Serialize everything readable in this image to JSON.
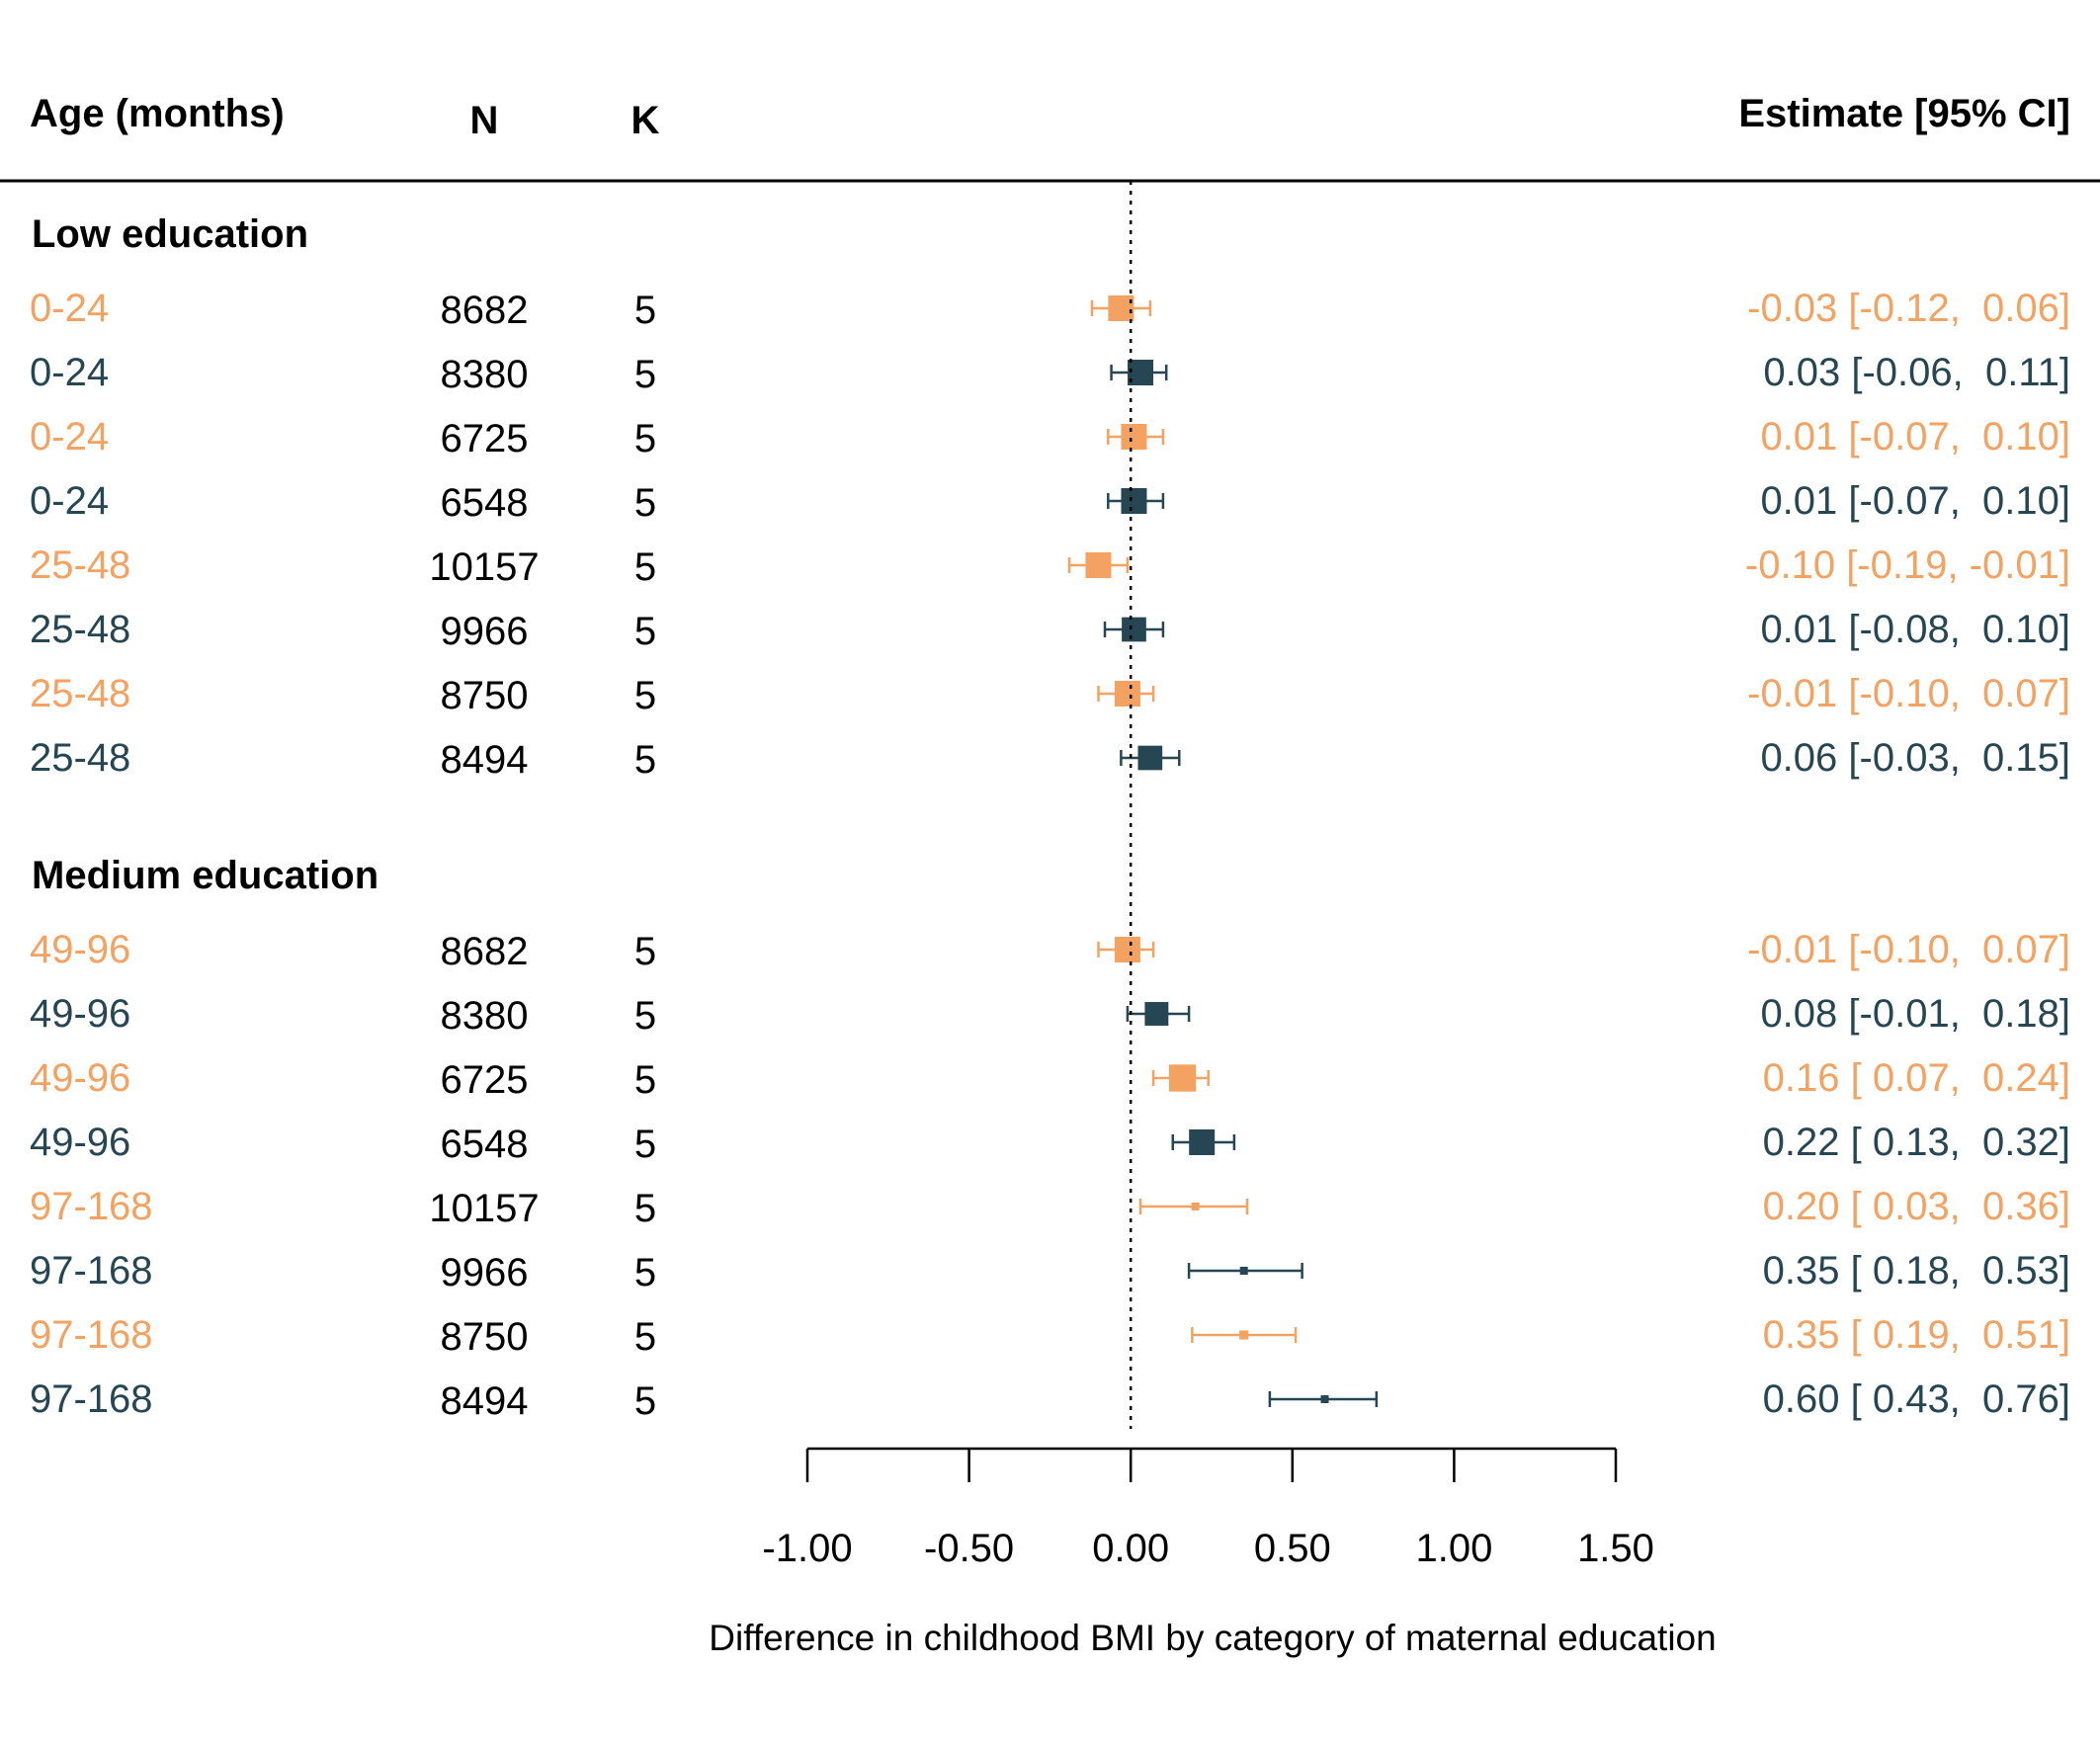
{
  "chart_data": {
    "type": "forest",
    "columns": {
      "label": "Age (months)",
      "n": "N",
      "k": "K",
      "estimate": "Estimate [95% CI]"
    },
    "xlabel": "Difference in childhood BMI by category of maternal education",
    "xlim": [
      -1.0,
      1.5
    ],
    "xticks": [
      "-1.00",
      "-0.50",
      "0.00",
      "0.50",
      "1.00",
      "1.50"
    ],
    "xtick_values": [
      -1.0,
      -0.5,
      0.0,
      0.5,
      1.0,
      1.5
    ],
    "reference_line": 0.0,
    "colors": {
      "orange": "#F4A261",
      "navy": "#264653",
      "text": "#000000"
    },
    "groups": [
      {
        "name": "Low education",
        "rows": [
          {
            "age": "0-24",
            "n": "8682",
            "k": "5",
            "est": -0.03,
            "lo": -0.12,
            "hi": 0.06,
            "ci_text": "-0.03 [-0.12,  0.06]",
            "color": "orange",
            "weight": 1.0
          },
          {
            "age": "0-24",
            "n": "8380",
            "k": "5",
            "est": 0.03,
            "lo": -0.06,
            "hi": 0.11,
            "ci_text": "0.03 [-0.06,  0.11]",
            "color": "navy",
            "weight": 1.0
          },
          {
            "age": "0-24",
            "n": "6725",
            "k": "5",
            "est": 0.01,
            "lo": -0.07,
            "hi": 0.1,
            "ci_text": "0.01 [-0.07,  0.10]",
            "color": "orange",
            "weight": 1.0
          },
          {
            "age": "0-24",
            "n": "6548",
            "k": "5",
            "est": 0.01,
            "lo": -0.07,
            "hi": 0.1,
            "ci_text": "0.01 [-0.07,  0.10]",
            "color": "navy",
            "weight": 1.0
          },
          {
            "age": "25-48",
            "n": "10157",
            "k": "5",
            "est": -0.1,
            "lo": -0.19,
            "hi": -0.01,
            "ci_text": "-0.10 [-0.19, -0.01]",
            "color": "orange",
            "weight": 1.0
          },
          {
            "age": "25-48",
            "n": "9966",
            "k": "5",
            "est": 0.01,
            "lo": -0.08,
            "hi": 0.1,
            "ci_text": "0.01 [-0.08,  0.10]",
            "color": "navy",
            "weight": 0.95
          },
          {
            "age": "25-48",
            "n": "8750",
            "k": "5",
            "est": -0.01,
            "lo": -0.1,
            "hi": 0.07,
            "ci_text": "-0.01 [-0.10,  0.07]",
            "color": "orange",
            "weight": 1.0
          },
          {
            "age": "25-48",
            "n": "8494",
            "k": "5",
            "est": 0.06,
            "lo": -0.03,
            "hi": 0.15,
            "ci_text": "0.06 [-0.03,  0.15]",
            "color": "navy",
            "weight": 0.95
          }
        ]
      },
      {
        "name": "Medium education",
        "rows": [
          {
            "age": "49-96",
            "n": "8682",
            "k": "5",
            "est": -0.01,
            "lo": -0.1,
            "hi": 0.07,
            "ci_text": "-0.01 [-0.10,  0.07]",
            "color": "orange",
            "weight": 1.0
          },
          {
            "age": "49-96",
            "n": "8380",
            "k": "5",
            "est": 0.08,
            "lo": -0.01,
            "hi": 0.18,
            "ci_text": "0.08 [-0.01,  0.18]",
            "color": "navy",
            "weight": 0.92
          },
          {
            "age": "49-96",
            "n": "6725",
            "k": "5",
            "est": 0.16,
            "lo": 0.07,
            "hi": 0.24,
            "ci_text": "0.16 [ 0.07,  0.24]",
            "color": "orange",
            "weight": 1.05
          },
          {
            "age": "49-96",
            "n": "6548",
            "k": "5",
            "est": 0.22,
            "lo": 0.13,
            "hi": 0.32,
            "ci_text": "0.22 [ 0.13,  0.32]",
            "color": "navy",
            "weight": 1.0
          },
          {
            "age": "97-168",
            "n": "10157",
            "k": "5",
            "est": 0.2,
            "lo": 0.03,
            "hi": 0.36,
            "ci_text": "0.20 [ 0.03,  0.36]",
            "color": "orange",
            "weight": 0.3
          },
          {
            "age": "97-168",
            "n": "9966",
            "k": "5",
            "est": 0.35,
            "lo": 0.18,
            "hi": 0.53,
            "ci_text": "0.35 [ 0.18,  0.53]",
            "color": "navy",
            "weight": 0.3
          },
          {
            "age": "97-168",
            "n": "8750",
            "k": "5",
            "est": 0.35,
            "lo": 0.19,
            "hi": 0.51,
            "ci_text": "0.35 [ 0.19,  0.51]",
            "color": "orange",
            "weight": 0.35
          },
          {
            "age": "97-168",
            "n": "8494",
            "k": "5",
            "est": 0.6,
            "lo": 0.43,
            "hi": 0.76,
            "ci_text": "0.60 [ 0.43,  0.76]",
            "color": "navy",
            "weight": 0.3
          }
        ]
      }
    ]
  }
}
